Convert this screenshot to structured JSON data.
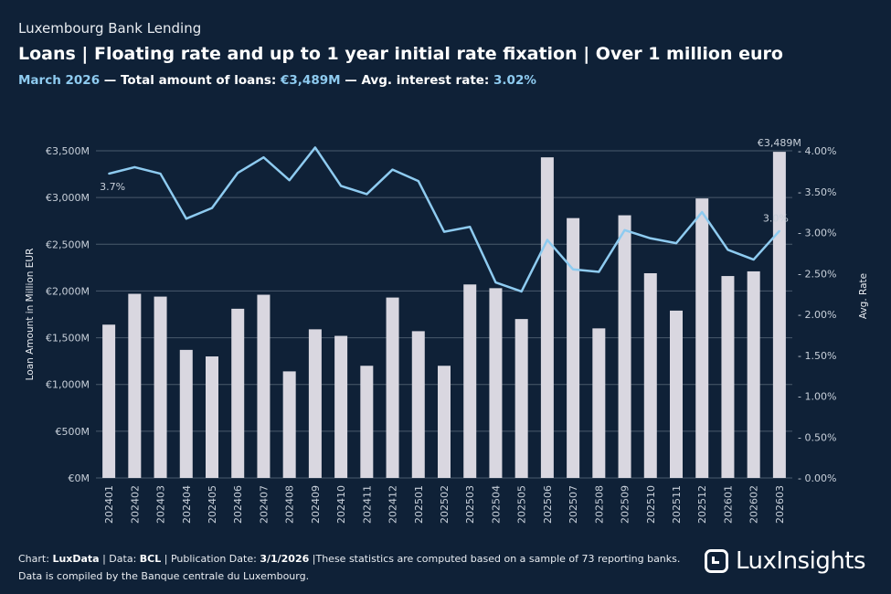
{
  "header": {
    "supertitle": "Luxembourg Bank Lending",
    "title": "Loans | Floating rate and up to 1 year initial rate fixation | Over 1 million euro",
    "period": "March 2026",
    "sep1": " — Total amount of loans: ",
    "total": "€3,489M",
    "sep2": " — Avg. interest rate: ",
    "rate": "3.02%"
  },
  "footer": {
    "line1_prefix": "Chart: ",
    "chart_by": "LuxData",
    "line1_mid": " | Data: ",
    "data_by": "BCL",
    "line1_mid2": " | Publication Date: ",
    "pub_date": "3/1/2026",
    "line1_suffix": " |These statistics are computed based on a sample of 73 reporting banks.",
    "line2": "Data is compiled by the Banque centrale du Luxembourg."
  },
  "logo": {
    "text_a": "Lux",
    "text_b": "Insights"
  },
  "colors": {
    "background": "#0f2137",
    "bar": "#d9d7e0",
    "line": "#8ecbf0",
    "grid": "#4a5a6c"
  },
  "chart_data": {
    "type": "bar+line",
    "ylabel": "Loan Amount in Million EUR",
    "y2label": "Avg. Rate",
    "ylim": [
      0,
      3500
    ],
    "y2lim": [
      0,
      4.0
    ],
    "yticks": [
      "€0M",
      "€500M",
      "€1,000M",
      "€1,500M",
      "€2,000M",
      "€2,500M",
      "€3,000M",
      "€3,500M"
    ],
    "y2ticks": [
      "0.00%",
      "0.50%",
      "1.00%",
      "1.50%",
      "2.00%",
      "2.50%",
      "3.00%",
      "3.50%",
      "4.00%"
    ],
    "grid": true,
    "categories": [
      "202401",
      "202402",
      "202403",
      "202404",
      "202405",
      "202406",
      "202407",
      "202408",
      "202409",
      "202410",
      "202411",
      "202412",
      "202501",
      "202502",
      "202503",
      "202504",
      "202505",
      "202506",
      "202507",
      "202508",
      "202509",
      "202510",
      "202511",
      "202512",
      "202601",
      "202602",
      "202603"
    ],
    "series": [
      {
        "name": "Loan Amount",
        "kind": "bar",
        "values": [
          1640,
          1970,
          1940,
          1370,
          1300,
          1810,
          1960,
          1140,
          1590,
          1520,
          1200,
          1930,
          1570,
          1200,
          2070,
          2030,
          1700,
          3430,
          2780,
          1600,
          2810,
          2190,
          1790,
          2990,
          2160,
          2210,
          3489
        ]
      },
      {
        "name": "Avg. Rate",
        "kind": "line",
        "values": [
          3.72,
          3.8,
          3.72,
          3.17,
          3.3,
          3.73,
          3.92,
          3.64,
          4.04,
          3.57,
          3.47,
          3.77,
          3.63,
          3.01,
          3.07,
          2.39,
          2.28,
          2.91,
          2.55,
          2.52,
          3.03,
          2.93,
          2.87,
          3.25,
          2.79,
          2.67,
          3.02
        ]
      }
    ],
    "annotations": [
      {
        "label": "3.7%",
        "series": "Avg. Rate",
        "index": 0
      },
      {
        "label": "€3,489M",
        "series": "Loan Amount",
        "index": 26
      },
      {
        "label": "3.0%",
        "series": "Avg. Rate",
        "index": 26
      }
    ]
  }
}
